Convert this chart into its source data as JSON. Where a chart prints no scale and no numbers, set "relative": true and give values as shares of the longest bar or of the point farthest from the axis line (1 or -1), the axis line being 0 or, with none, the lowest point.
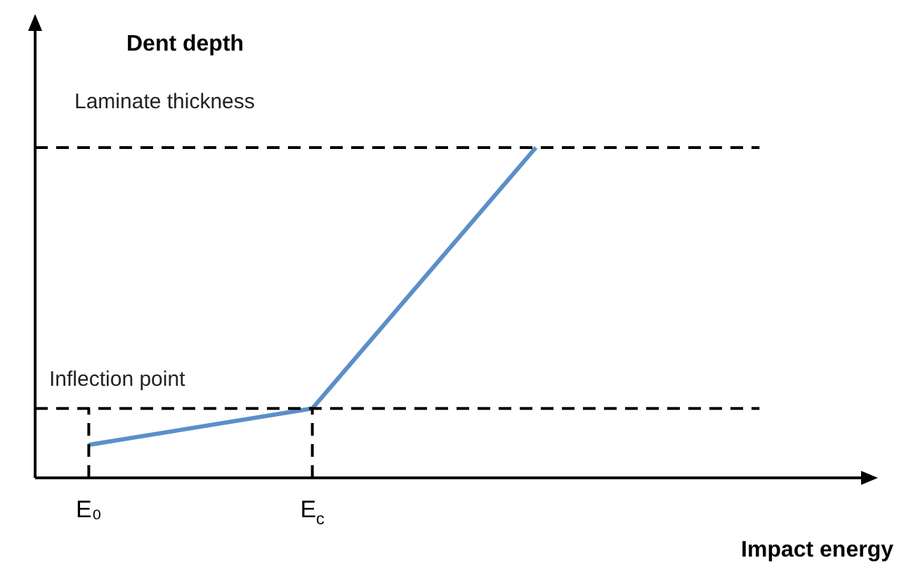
{
  "chart_data": {
    "type": "line",
    "relative": true,
    "ylabel": "Dent depth",
    "xlabel": "Impact energy",
    "categories": [
      "E₀",
      "E$_{c}$",
      null
    ],
    "series": [
      {
        "color": "#5b8fc9",
        "values": [
          0.1,
          0.21,
          1
        ]
      }
    ],
    "ref_lines": [
      {
        "axis": "y",
        "value": 1,
        "label": "Laminate thickness",
        "line_style": "dashed",
        "color": "#000000"
      },
      {
        "axis": "y",
        "value": 0.21,
        "label": "Inflection point",
        "line_style": "dashed",
        "color": "#000000"
      },
      {
        "axis": "x",
        "value": "E₀",
        "line_style": "dashed",
        "color": "#000000"
      },
      {
        "axis": "x",
        "value": "E$_{c}$",
        "line_style": "dashed",
        "color": "#000000"
      }
    ],
    "marker": "none",
    "line_style": "solid",
    "legend": false
  }
}
